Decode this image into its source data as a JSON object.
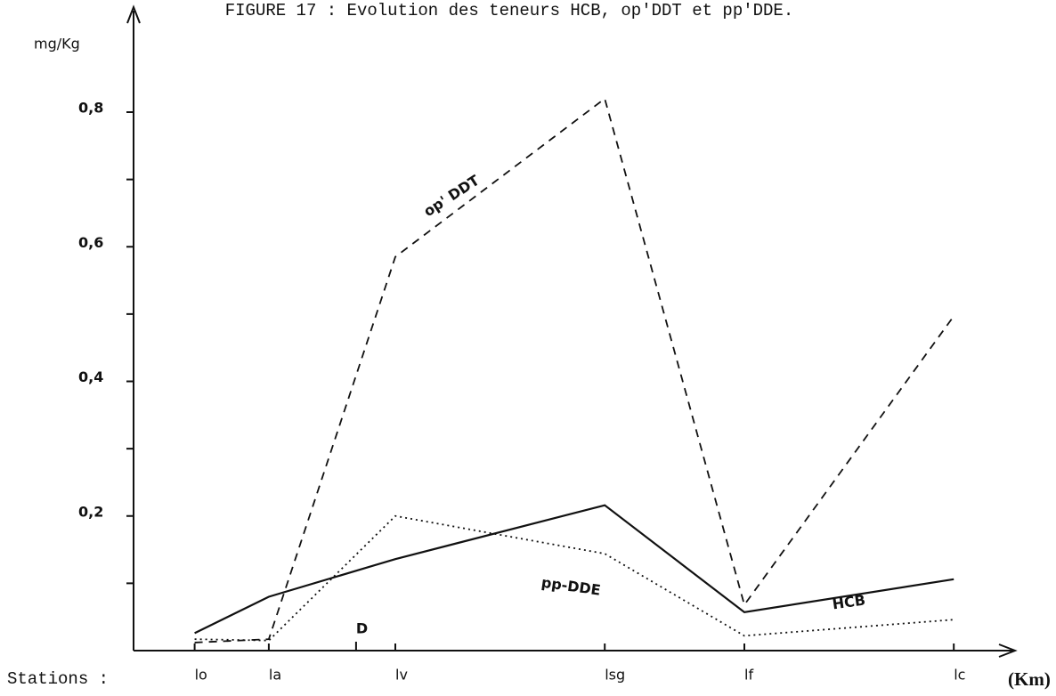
{
  "chart_data": {
    "type": "line",
    "title": "FIGURE 17 :  Evolution des teneurs HCB, op'DDT et pp'DDE.",
    "y_label": "mg/Kg",
    "x_prefix": "Stations :",
    "x_label": "(Km)",
    "categories": [
      "lo",
      "la",
      "lv",
      "lsg",
      "lf",
      "lc"
    ],
    "x": [
      7,
      15.5,
      30,
      54,
      70,
      94
    ],
    "xlim": [
      0,
      100
    ],
    "annotation": {
      "text": "D",
      "x": 25.5
    },
    "ylim": [
      0,
      0.96
    ],
    "yticks": [
      {
        "value": 0.2,
        "label": "0,2"
      },
      {
        "value": 0.4,
        "label": "0,4"
      },
      {
        "value": 0.6,
        "label": "0,6"
      },
      {
        "value": 0.8,
        "label": "0,8"
      }
    ],
    "yminor_ticks": [
      0.1,
      0.3,
      0.5,
      0.7
    ],
    "series": [
      {
        "name": "op' DDT",
        "color": "#111",
        "dash": "dashed",
        "values": [
          0.012,
          0.017,
          0.585,
          0.82,
          0.068,
          0.497
        ]
      },
      {
        "name": "HCB",
        "color": "#111",
        "dash": "solid",
        "values": [
          0.026,
          0.08,
          0.136,
          0.216,
          0.057,
          0.106
        ]
      },
      {
        "name": "pp-DDE",
        "color": "#111",
        "dash": "dotted",
        "values": [
          0.017,
          0.015,
          0.2,
          0.144,
          0.022,
          0.046
        ]
      }
    ]
  }
}
